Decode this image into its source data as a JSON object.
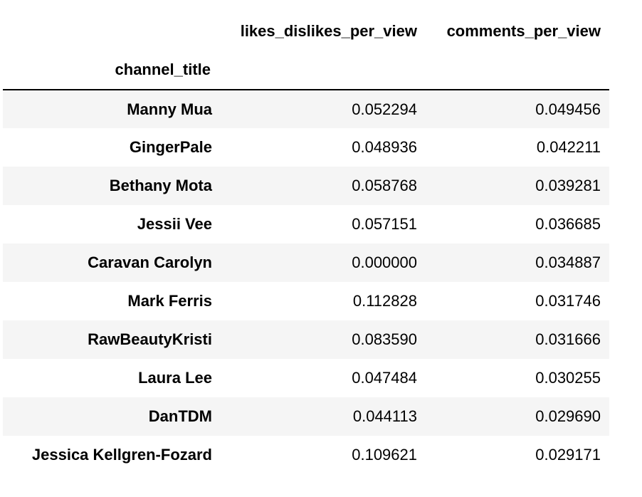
{
  "table": {
    "columns": [
      "likes_dislikes_per_view",
      "comments_per_view"
    ],
    "index_name": "channel_title",
    "rows": [
      {
        "channel_title": "Manny Mua",
        "likes_dislikes_per_view": "0.052294",
        "comments_per_view": "0.049456"
      },
      {
        "channel_title": "GingerPale",
        "likes_dislikes_per_view": "0.048936",
        "comments_per_view": "0.042211"
      },
      {
        "channel_title": "Bethany Mota",
        "likes_dislikes_per_view": "0.058768",
        "comments_per_view": "0.039281"
      },
      {
        "channel_title": "Jessii Vee",
        "likes_dislikes_per_view": "0.057151",
        "comments_per_view": "0.036685"
      },
      {
        "channel_title": "Caravan Carolyn",
        "likes_dislikes_per_view": "0.000000",
        "comments_per_view": "0.034887"
      },
      {
        "channel_title": "Mark Ferris",
        "likes_dislikes_per_view": "0.112828",
        "comments_per_view": "0.031746"
      },
      {
        "channel_title": "RawBeautyKristi",
        "likes_dislikes_per_view": "0.083590",
        "comments_per_view": "0.031666"
      },
      {
        "channel_title": "Laura Lee",
        "likes_dislikes_per_view": "0.047484",
        "comments_per_view": "0.030255"
      },
      {
        "channel_title": "DanTDM",
        "likes_dislikes_per_view": "0.044113",
        "comments_per_view": "0.029690"
      },
      {
        "channel_title": "Jessica Kellgren-Fozard",
        "likes_dislikes_per_view": "0.109621",
        "comments_per_view": "0.029171"
      }
    ]
  }
}
